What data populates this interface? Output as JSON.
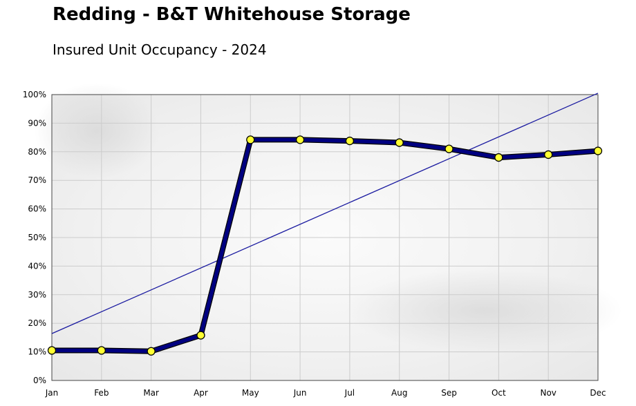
{
  "chart_data": {
    "type": "line",
    "title": "Redding - B&T Whitehouse Storage",
    "subtitle": "Insured Unit Occupancy - 2024",
    "xlabel": "",
    "ylabel": "",
    "categories": [
      "Jan",
      "Feb",
      "Mar",
      "Apr",
      "May",
      "Jun",
      "Jul",
      "Aug",
      "Sep",
      "Oct",
      "Nov",
      "Dec"
    ],
    "series": [
      {
        "values": [
          10.5,
          10.5,
          10.2,
          15.8,
          84.2,
          84.2,
          83.8,
          83.2,
          81.0,
          78.0,
          79.0,
          80.3
        ]
      }
    ],
    "trendline": {
      "start": 16.4,
      "end": 100.5
    },
    "ylim": [
      0,
      100
    ],
    "yticks": [
      "0%",
      "10%",
      "20%",
      "30%",
      "40%",
      "50%",
      "60%",
      "70%",
      "80%",
      "90%",
      "100%"
    ],
    "grid": true,
    "legend": "none",
    "colors": {
      "line": "#000080",
      "marker_fill": "#ffff33",
      "trendline": "#1a1aa0",
      "grid": "#cccccc"
    }
  }
}
